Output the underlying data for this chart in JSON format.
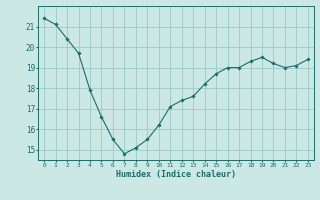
{
  "x": [
    0,
    1,
    2,
    3,
    4,
    5,
    6,
    7,
    8,
    9,
    10,
    11,
    12,
    13,
    14,
    15,
    16,
    17,
    18,
    19,
    20,
    21,
    22,
    23
  ],
  "y": [
    21.4,
    21.1,
    20.4,
    19.7,
    17.9,
    16.6,
    15.5,
    14.8,
    15.1,
    15.5,
    16.2,
    17.1,
    17.4,
    17.6,
    18.2,
    18.7,
    19.0,
    19.0,
    19.3,
    19.5,
    19.2,
    19.0,
    19.1,
    19.4
  ],
  "xlabel": "Humidex (Indice chaleur)",
  "bg_color": "#cce8e4",
  "grid_color": "#99ccc8",
  "line_color": "#1a6e6a",
  "marker_color": "#1a6e6a",
  "tick_color": "#1a6e6a",
  "label_color": "#1a6e6a",
  "ylim": [
    14.5,
    22.0
  ],
  "yticks": [
    15,
    16,
    17,
    18,
    19,
    20,
    21
  ],
  "xlim": [
    -0.5,
    23.5
  ],
  "xticks": [
    0,
    1,
    2,
    3,
    4,
    5,
    6,
    7,
    8,
    9,
    10,
    11,
    12,
    13,
    14,
    15,
    16,
    17,
    18,
    19,
    20,
    21,
    22,
    23
  ]
}
